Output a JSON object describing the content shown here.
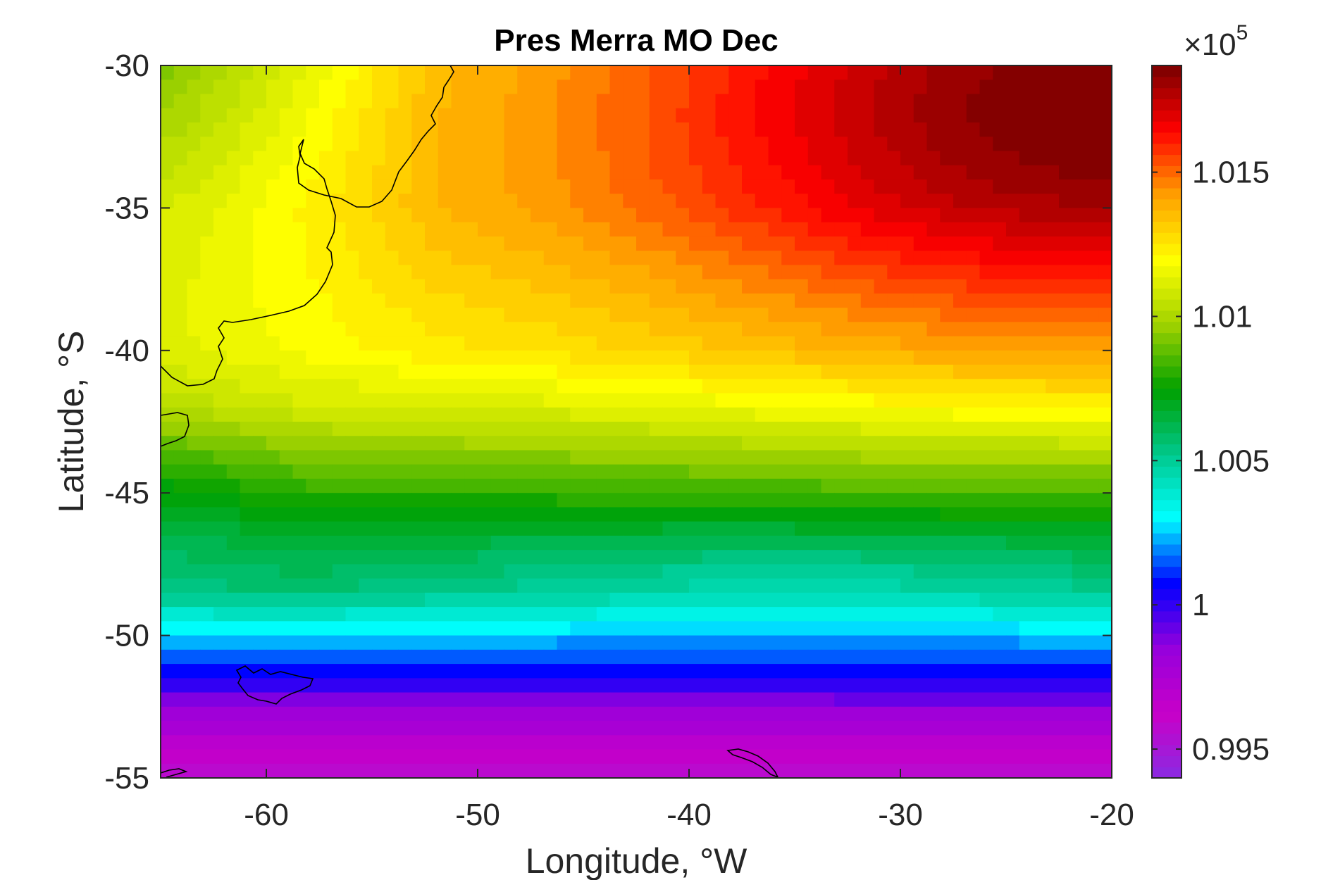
{
  "chart_data": {
    "type": "heatmap",
    "title": "Pres Merra MO Dec",
    "xlabel": "Longitude, °W",
    "ylabel": "Latitude, °S",
    "xlim": [
      -65,
      -20
    ],
    "ylim": [
      -55,
      -30
    ],
    "x_ticks": [
      -60,
      -50,
      -40,
      -30,
      -20
    ],
    "x_tick_labels": [
      "-60",
      "-50",
      "-40",
      "-30",
      "-20"
    ],
    "y_ticks": [
      -30,
      -35,
      -40,
      -45,
      -50,
      -55
    ],
    "y_tick_labels": [
      "-30",
      "-35",
      "-40",
      "-45",
      "-50",
      "-55"
    ],
    "grid": false,
    "grid_resolution": {
      "lon_step": 0.625,
      "lat_step": 0.5
    },
    "colorbar": {
      "multiplier_label": "×10",
      "multiplier_exponent": "5",
      "range": [
        0.994,
        1.0187
      ],
      "ticks": [
        0.995,
        1.0,
        1.005,
        1.01,
        1.015
      ],
      "tick_labels": [
        "0.995",
        "1",
        "1.005",
        "1.01",
        "1.015"
      ],
      "colormap": [
        "#8a2be2",
        "#c800c8",
        "#9600dc",
        "#0000ff",
        "#00ffff",
        "#00c88c",
        "#00a000",
        "#a0d200",
        "#ffff00",
        "#ffa000",
        "#ff0000",
        "#780000"
      ],
      "levels": 64
    },
    "field_description_values": {
      "units": "×10^5 Pa",
      "latitude_profile": [
        {
          "lat": -30,
          "value": 1.0125
        },
        {
          "lat": -35,
          "value": 1.0128
        },
        {
          "lat": -40,
          "value": 1.012
        },
        {
          "lat": -42,
          "value": 1.0108
        },
        {
          "lat": -45,
          "value": 1.008
        },
        {
          "lat": -47,
          "value": 1.006
        },
        {
          "lat": -48.5,
          "value": 1.005
        },
        {
          "lat": -50,
          "value": 1.0025
        },
        {
          "lat": -51.5,
          "value": 1.0002
        },
        {
          "lat": -53,
          "value": 0.9978
        },
        {
          "lat": -55,
          "value": 0.9955
        }
      ],
      "high_pressure_center": {
        "lon": -20,
        "lat": -31,
        "value": 1.0187
      }
    },
    "annotations": [
      "coastline of South America",
      "Falkland Islands",
      "South Georgia"
    ]
  }
}
